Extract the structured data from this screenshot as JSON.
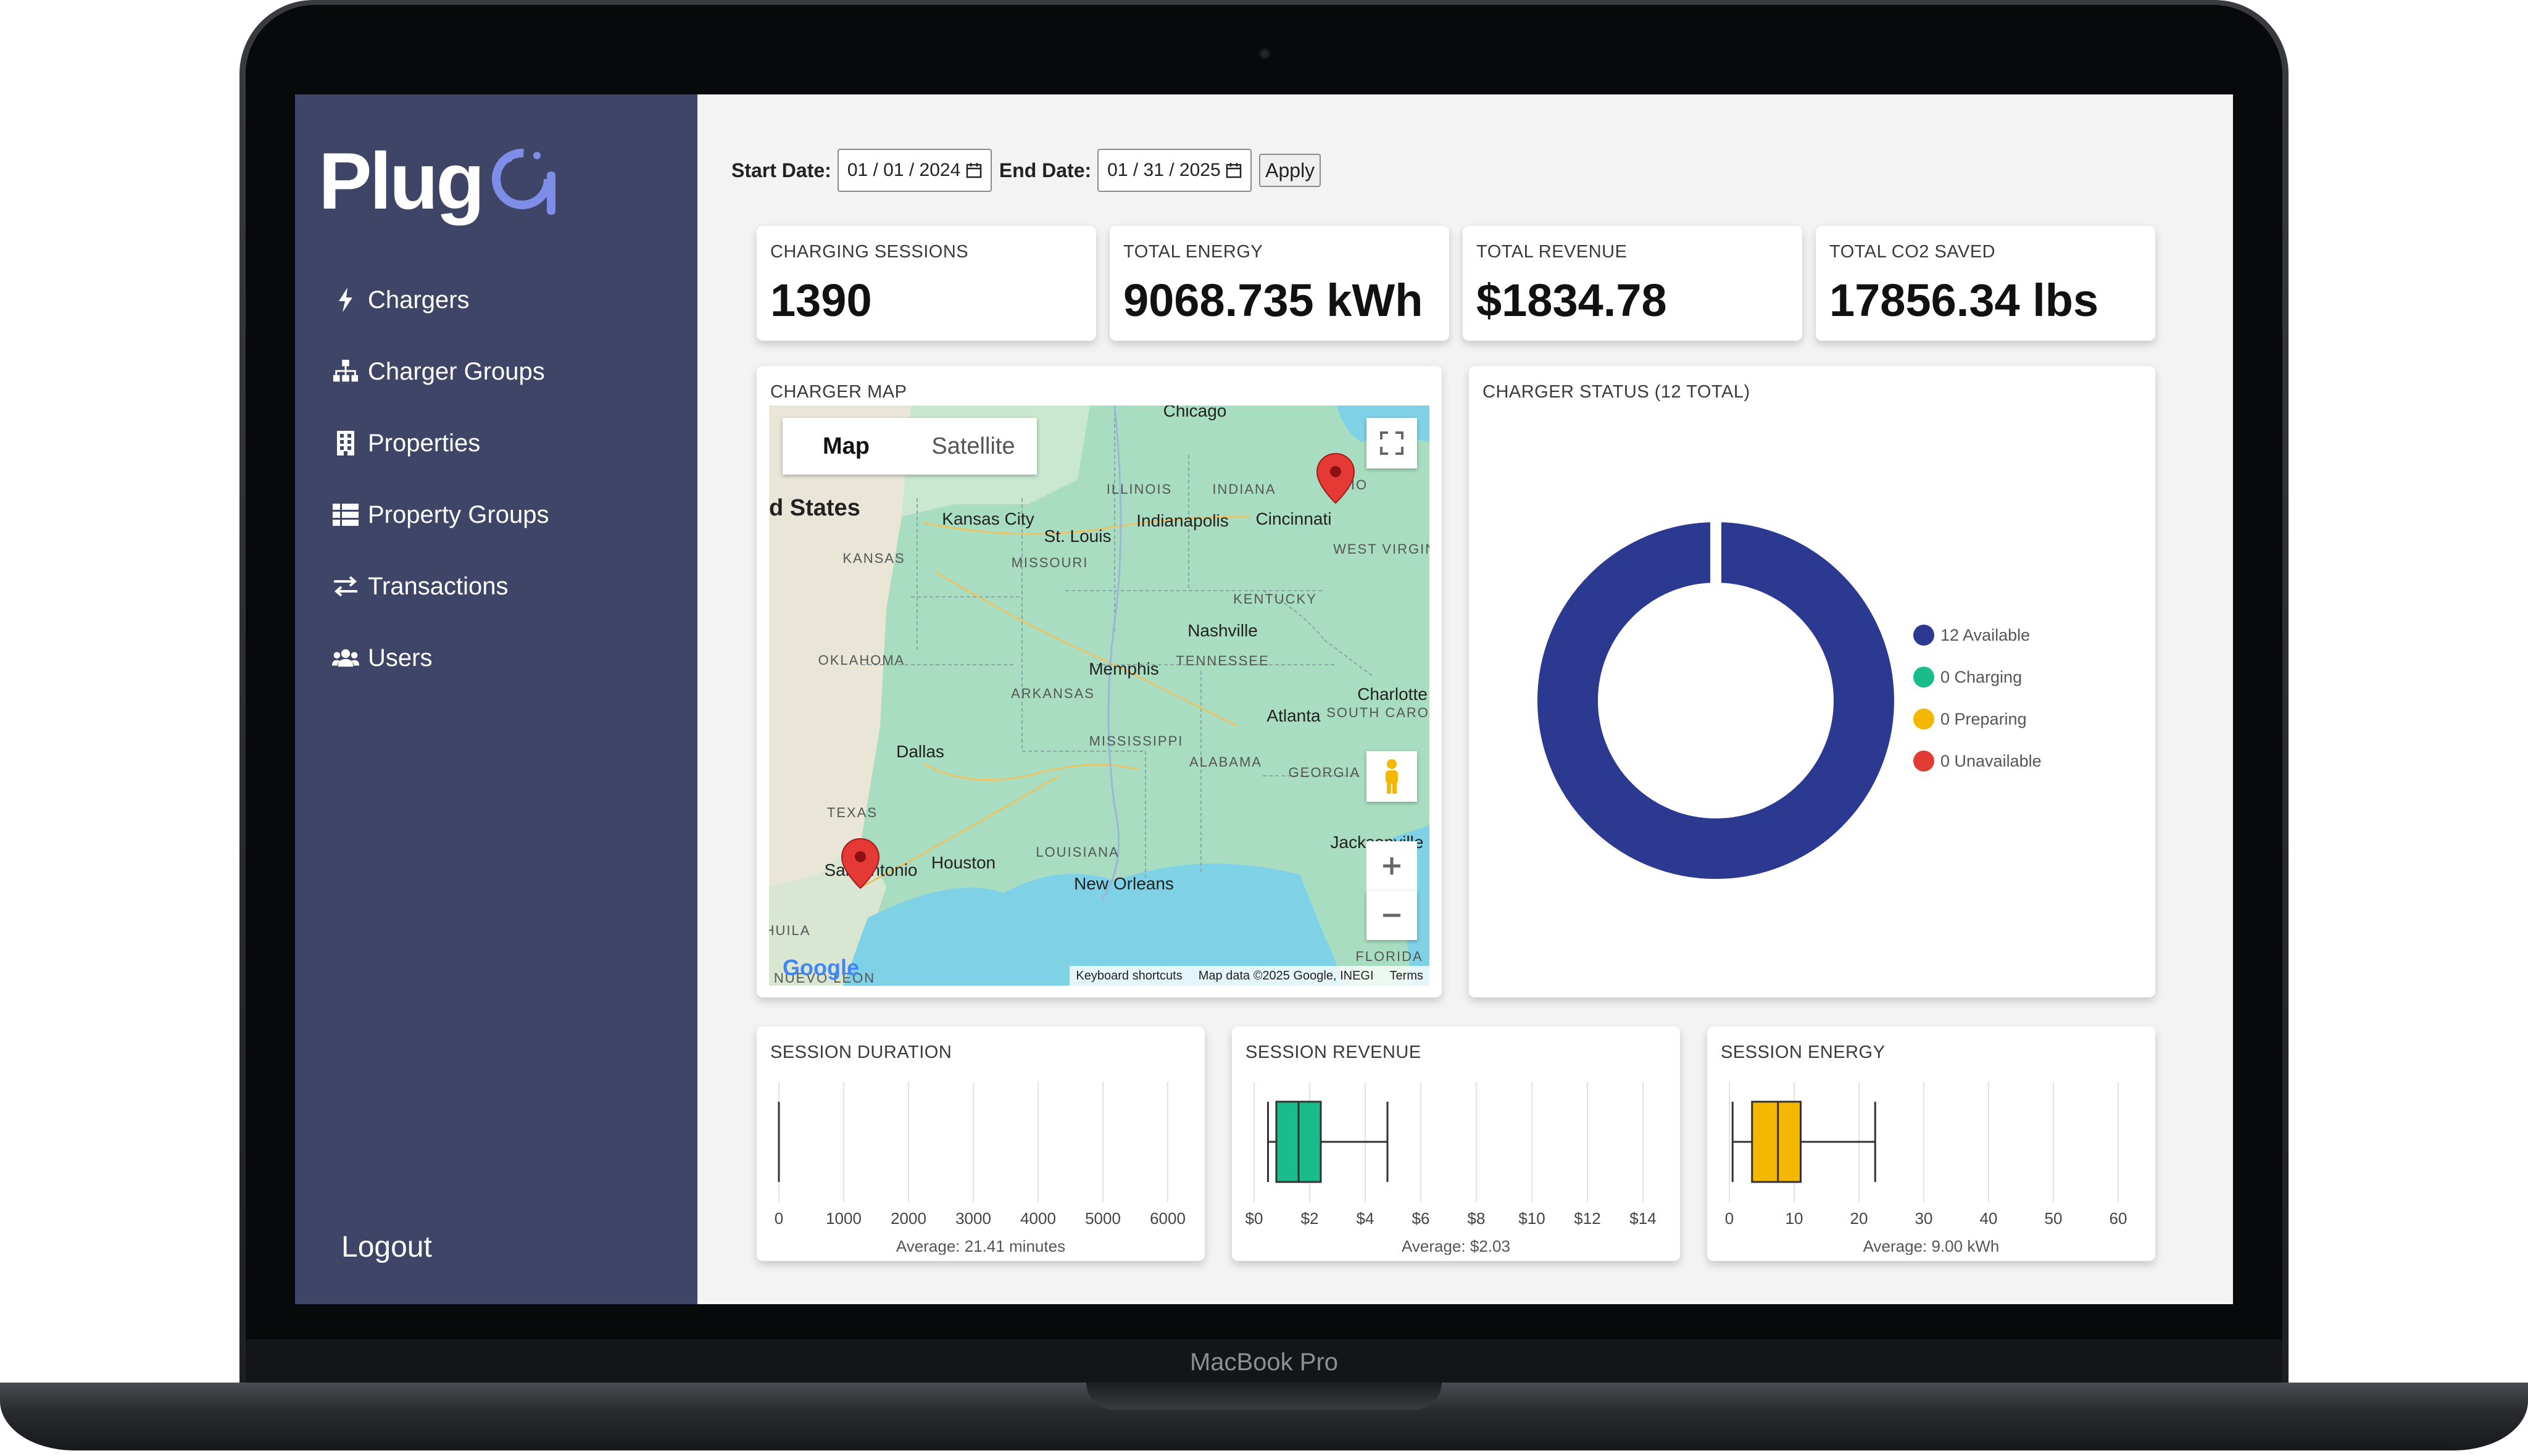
{
  "device": {
    "label": "MacBook Pro"
  },
  "sidebar": {
    "logo_text": "Plug",
    "items": [
      {
        "label": "Chargers",
        "icon": "bolt-icon"
      },
      {
        "label": "Charger Groups",
        "icon": "sitemap-icon"
      },
      {
        "label": "Properties",
        "icon": "building-icon"
      },
      {
        "label": "Property Groups",
        "icon": "table-icon"
      },
      {
        "label": "Transactions",
        "icon": "exchange-icon"
      },
      {
        "label": "Users",
        "icon": "users-icon"
      }
    ],
    "logout_label": "Logout"
  },
  "filters": {
    "start_label": "Start Date:",
    "start_value": "01 / 01 / 2024",
    "end_label": "End Date:",
    "end_value": "01 / 31 / 2025",
    "apply_label": "Apply"
  },
  "stats": [
    {
      "label": "CHARGING SESSIONS",
      "value": "1390"
    },
    {
      "label": "TOTAL ENERGY",
      "value": "9068.735 kWh"
    },
    {
      "label": "TOTAL REVENUE",
      "value": "$1834.78"
    },
    {
      "label": "TOTAL CO2 SAVED",
      "value": "17856.34 lbs"
    }
  ],
  "map": {
    "title": "CHARGER MAP",
    "toggle_map": "Map",
    "toggle_satellite": "Satellite",
    "labels": [
      {
        "text": "Chicago"
      },
      {
        "text": "ILLINOIS"
      },
      {
        "text": "INDIANA"
      },
      {
        "text": "OHIO"
      },
      {
        "text": "d States"
      },
      {
        "text": "Kansas City"
      },
      {
        "text": "St. Louis"
      },
      {
        "text": "Indianapolis"
      },
      {
        "text": "Cincinnati"
      },
      {
        "text": "KANSAS"
      },
      {
        "text": "MISSOURI"
      },
      {
        "text": "WEST VIRGINIA"
      },
      {
        "text": "KENTUCKY"
      },
      {
        "text": "Nashville"
      },
      {
        "text": "OKLAHOMA"
      },
      {
        "text": "TENNESSEE"
      },
      {
        "text": "Memphis"
      },
      {
        "text": "ARKANSAS"
      },
      {
        "text": "Charlotte"
      },
      {
        "text": "Atlanta"
      },
      {
        "text": "SOUTH CAROLINA"
      },
      {
        "text": "Dallas"
      },
      {
        "text": "MISSISSIPPI"
      },
      {
        "text": "ALABAMA"
      },
      {
        "text": "GEORGIA"
      },
      {
        "text": "TEXAS"
      },
      {
        "text": "LOUISIANA"
      },
      {
        "text": "Jacksonville"
      },
      {
        "text": "San Antonio"
      },
      {
        "text": "Houston"
      },
      {
        "text": "New Orleans"
      },
      {
        "text": "HUILA"
      },
      {
        "text": "FLORIDA"
      },
      {
        "text": "NUEVO LEON"
      }
    ],
    "google": "Google",
    "footer": [
      "Keyboard shortcuts",
      "Map data ©2025 Google, INEGI",
      "Terms"
    ]
  },
  "status": {
    "title": "CHARGER STATUS (12 TOTAL)",
    "legend": [
      {
        "label": "12 Available",
        "color": "#2b3990",
        "value": 12
      },
      {
        "label": "0 Charging",
        "color": "#1abc8c",
        "value": 0
      },
      {
        "label": "0 Preparing",
        "color": "#f5b800",
        "value": 0
      },
      {
        "label": "0 Unavailable",
        "color": "#e03c31",
        "value": 0
      }
    ]
  },
  "chart_data": [
    {
      "type": "box",
      "title": "SESSION DURATION",
      "ticks": [
        "0",
        "1000",
        "2000",
        "3000",
        "4000",
        "5000",
        "6000"
      ],
      "xlim": [
        0,
        6000
      ],
      "box": {
        "min": 0,
        "q1": 0,
        "median": 0,
        "q3": 0,
        "max": 0
      },
      "color": "#333333",
      "average": "Average: 21.41 minutes"
    },
    {
      "type": "box",
      "title": "SESSION REVENUE",
      "ticks": [
        "$0",
        "$2",
        "$4",
        "$6",
        "$8",
        "$10",
        "$12",
        "$14"
      ],
      "xlim": [
        0,
        14
      ],
      "box": {
        "min": 0.5,
        "q1": 0.8,
        "median": 1.6,
        "q3": 2.4,
        "max": 4.8
      },
      "color": "#1abc8c",
      "average": "Average: $2.03"
    },
    {
      "type": "box",
      "title": "SESSION ENERGY",
      "ticks": [
        "0",
        "10",
        "20",
        "30",
        "40",
        "50",
        "60"
      ],
      "xlim": [
        0,
        60
      ],
      "box": {
        "min": 0.5,
        "q1": 3.5,
        "median": 7.5,
        "q3": 11,
        "max": 22.5
      },
      "color": "#f5b800",
      "average": "Average: 9.00 kWh"
    }
  ]
}
